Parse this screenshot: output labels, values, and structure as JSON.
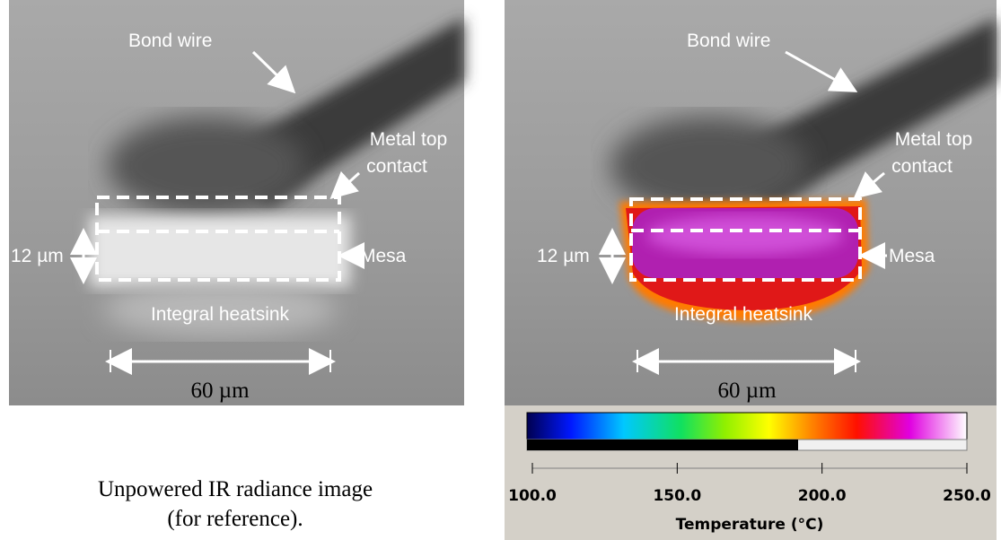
{
  "left_panel": {
    "bond_wire": "Bond wire",
    "metal_top_contact": [
      "Metal top",
      "contact"
    ],
    "thickness": "12 µm",
    "mesa": "Mesa",
    "heatsink": "Integral heatsink",
    "width": "60 µm",
    "caption": [
      "Unpowered IR radiance image",
      "(for reference)."
    ]
  },
  "right_panel": {
    "bond_wire": "Bond wire",
    "metal_top_contact": [
      "Metal top",
      "contact"
    ],
    "thickness": "12 µm",
    "mesa": "Mesa",
    "heatsink": "Integral heatsink",
    "width": "60 µm"
  },
  "color_scale": {
    "ticks": [
      {
        "value": 100,
        "label": "100.0"
      },
      {
        "value": 150,
        "label": "150.0"
      },
      {
        "value": 200,
        "label": "200.0"
      },
      {
        "value": 250,
        "label": "250.0"
      }
    ],
    "axis_label": "Temperature (°C)"
  }
}
